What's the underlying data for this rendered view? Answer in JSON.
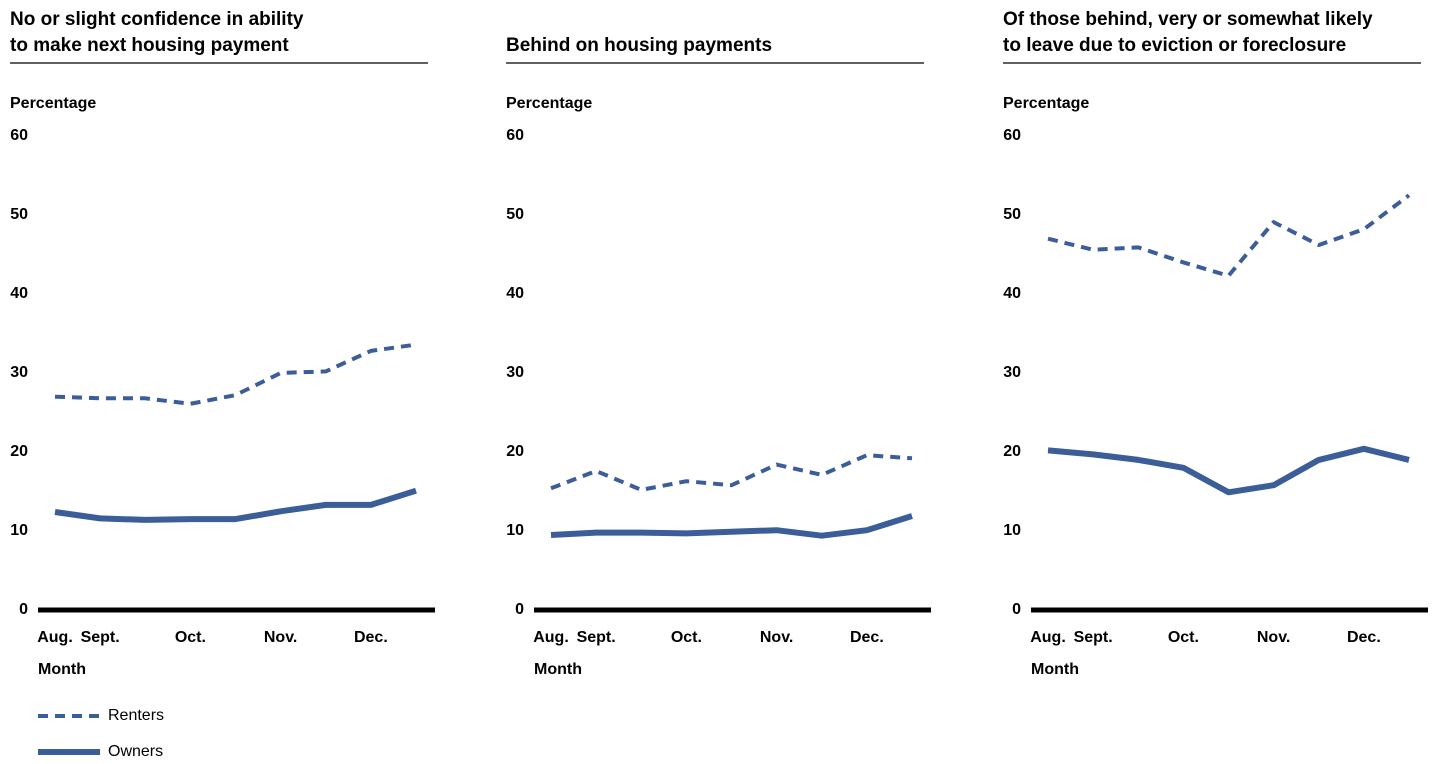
{
  "chart_data": [
    {
      "type": "line",
      "title": [
        "No or slight confidence in ability",
        "to make next housing payment"
      ],
      "ylabel": "Percentage",
      "xlabel": "Month",
      "categories": [
        "Aug.",
        "Sept.",
        null,
        "Oct.",
        null,
        "Nov.",
        null,
        "Dec.",
        null
      ],
      "ylim": [
        0,
        60
      ],
      "yticks": [
        0,
        10,
        20,
        30,
        40,
        50,
        60
      ],
      "grid": false,
      "series": [
        {
          "name": "Renters",
          "color": "#3b5e99",
          "dashed": true,
          "values": [
            27.0,
            26.8,
            26.8,
            26.1,
            27.2,
            30.0,
            30.2,
            32.8,
            33.6
          ]
        },
        {
          "name": "Owners",
          "color": "#3b5e99",
          "dashed": false,
          "values": [
            12.4,
            11.6,
            11.4,
            11.5,
            11.5,
            12.5,
            13.3,
            13.3,
            15.1
          ]
        }
      ]
    },
    {
      "type": "line",
      "title": [
        "Behind on housing payments"
      ],
      "ylabel": "Percentage",
      "xlabel": "Month",
      "categories": [
        "Aug.",
        "Sept.",
        null,
        "Oct.",
        null,
        "Nov.",
        null,
        "Dec.",
        null
      ],
      "ylim": [
        0,
        60
      ],
      "yticks": [
        0,
        10,
        20,
        30,
        40,
        50,
        60
      ],
      "grid": false,
      "series": [
        {
          "color": "#3b5e99",
          "dashed": true,
          "values": [
            15.4,
            17.6,
            15.2,
            16.3,
            15.8,
            18.4,
            17.1,
            19.6,
            19.2
          ]
        },
        {
          "color": "#3b5e99",
          "dashed": false,
          "values": [
            9.5,
            9.8,
            9.8,
            9.7,
            9.9,
            10.1,
            9.4,
            10.1,
            11.9
          ]
        }
      ]
    },
    {
      "type": "line",
      "title": [
        "Of those behind, very or somewhat likely",
        "to leave due to eviction or foreclosure"
      ],
      "ylabel": "Percentage",
      "xlabel": "Month",
      "categories": [
        "Aug.",
        "Sept.",
        null,
        "Oct.",
        null,
        "Nov.",
        null,
        "Dec.",
        null
      ],
      "ylim": [
        0,
        60
      ],
      "yticks": [
        0,
        10,
        20,
        30,
        40,
        50,
        60
      ],
      "grid": false,
      "series": [
        {
          "color": "#3b5e99",
          "dashed": true,
          "values": [
            47.0,
            45.6,
            45.9,
            44.0,
            42.3,
            49.1,
            46.2,
            48.2,
            52.5
          ]
        },
        {
          "color": "#3b5e99",
          "dashed": false,
          "values": [
            20.2,
            19.7,
            19.0,
            18.0,
            14.9,
            15.8,
            19.0,
            20.4,
            19.0
          ]
        }
      ]
    }
  ]
}
